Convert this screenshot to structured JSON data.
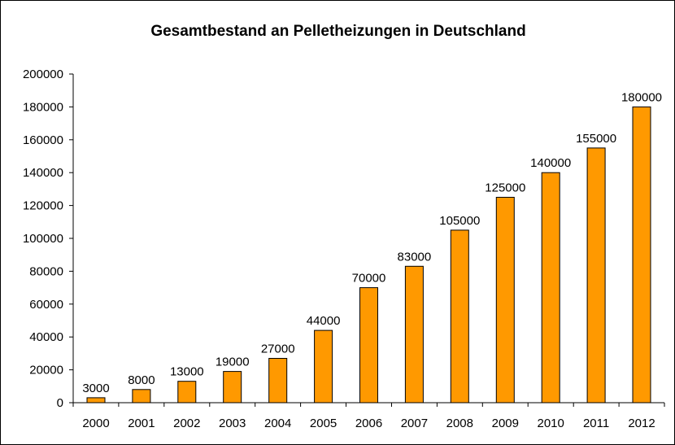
{
  "chart_data": {
    "type": "bar",
    "title": "Gesamtbestand an Pelletheizungen in Deutschland",
    "categories": [
      "2000",
      "2001",
      "2002",
      "2003",
      "2004",
      "2005",
      "2006",
      "2007",
      "2008",
      "2009",
      "2010",
      "2011",
      "2012"
    ],
    "values": [
      3000,
      8000,
      13000,
      19000,
      27000,
      44000,
      70000,
      83000,
      105000,
      125000,
      140000,
      155000,
      180000
    ],
    "data_labels": [
      "3000",
      "8000",
      "13000",
      "19000",
      "27000",
      "44000",
      "70000",
      "83000",
      "105000",
      "125000",
      "140000",
      "155000",
      "180000"
    ],
    "y_ticks": [
      "0",
      "20000",
      "40000",
      "60000",
      "80000",
      "100000",
      "120000",
      "140000",
      "160000",
      "180000",
      "200000"
    ],
    "ylim": [
      0,
      200000
    ],
    "xlabel": "",
    "ylabel": "",
    "grid": false,
    "legend": "none",
    "bar_color": "#FF9900",
    "bar_edge_color": "#000000"
  }
}
